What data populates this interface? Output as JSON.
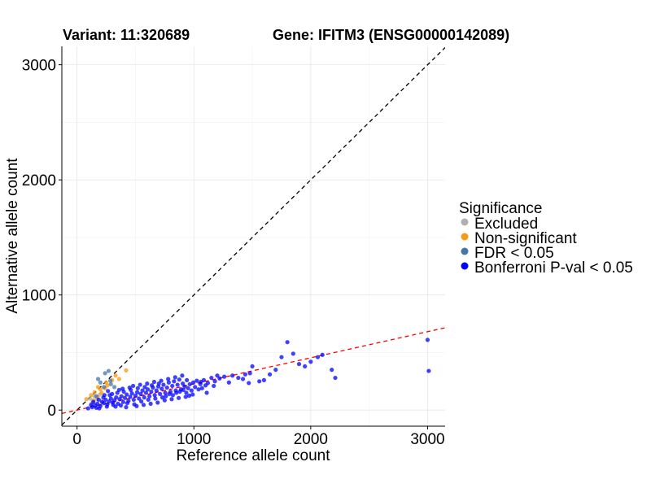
{
  "titles": {
    "left": "Variant: 11:320689",
    "right": "Gene: IFITM3 (ENSG00000142089)"
  },
  "legend": {
    "title": "Significance",
    "items": [
      {
        "label": "Excluded",
        "color": "#b0b0b0"
      },
      {
        "label": "Non-significant",
        "color": "#f59a12"
      },
      {
        "label": "FDR < 0.05",
        "color": "#4477aa"
      },
      {
        "label": "Bonferroni P-val < 0.05",
        "color": "#0000ff"
      }
    ]
  },
  "chart_data": {
    "type": "scatter",
    "xlabel": "Reference allele count",
    "ylabel": "Alternative allele count",
    "xlim": [
      -130,
      3150
    ],
    "ylim": [
      -140,
      3160
    ],
    "x_ticks": [
      0,
      1000,
      2000,
      3000
    ],
    "y_ticks": [
      0,
      1000,
      2000,
      3000
    ],
    "x_tick_labels": [
      "0",
      "1000",
      "2000",
      "3000"
    ],
    "y_tick_labels": [
      "0",
      "1000",
      "2000",
      "3000"
    ],
    "grid": true,
    "legend_position": "right",
    "reference_lines": [
      {
        "name": "identity",
        "slope": 1.0,
        "intercept": 0,
        "color": "#000000",
        "dash": "dashed"
      },
      {
        "name": "fit",
        "slope": 0.227,
        "intercept": 0,
        "color": "#ff0000",
        "dash": "dashed"
      }
    ],
    "series": [
      {
        "name": "Excluded",
        "color": "#b0b0b0",
        "points": [
          [
            110,
            100
          ],
          [
            135,
            85
          ],
          [
            150,
            120
          ],
          [
            170,
            95
          ],
          [
            195,
            135
          ],
          [
            125,
            60
          ],
          [
            210,
            80
          ]
        ]
      },
      {
        "name": "Non-significant",
        "color": "#f59a12",
        "points": [
          [
            80,
            95
          ],
          [
            120,
            130
          ],
          [
            150,
            155
          ],
          [
            180,
            200
          ],
          [
            200,
            180
          ],
          [
            240,
            190
          ],
          [
            300,
            260
          ],
          [
            330,
            300
          ],
          [
            360,
            270
          ],
          [
            420,
            345
          ],
          [
            250,
            240
          ],
          [
            260,
            215
          ],
          [
            140,
            80
          ],
          [
            175,
            115
          ],
          [
            210,
            150
          ]
        ]
      },
      {
        "name": "FDR < 0.05",
        "color": "#4477aa",
        "points": [
          [
            200,
            240
          ],
          [
            240,
            320
          ],
          [
            270,
            340
          ],
          [
            285,
            255
          ],
          [
            180,
            270
          ],
          [
            290,
            225
          ],
          [
            230,
            200
          ],
          [
            320,
            200
          ],
          [
            165,
            120
          ]
        ]
      },
      {
        "name": "Bonferroni P-val < 0.05",
        "color": "#0000ff",
        "points": [
          [
            95,
            15
          ],
          [
            130,
            25
          ],
          [
            155,
            40
          ],
          [
            175,
            55
          ],
          [
            200,
            35
          ],
          [
            215,
            70
          ],
          [
            230,
            60
          ],
          [
            245,
            90
          ],
          [
            260,
            50
          ],
          [
            275,
            75
          ],
          [
            290,
            100
          ],
          [
            305,
            65
          ],
          [
            320,
            85
          ],
          [
            335,
            110
          ],
          [
            350,
            55
          ],
          [
            365,
            95
          ],
          [
            380,
            120
          ],
          [
            395,
            70
          ],
          [
            410,
            105
          ],
          [
            425,
            135
          ],
          [
            440,
            80
          ],
          [
            455,
            115
          ],
          [
            470,
            145
          ],
          [
            485,
            90
          ],
          [
            500,
            125
          ],
          [
            515,
            155
          ],
          [
            530,
            100
          ],
          [
            545,
            140
          ],
          [
            560,
            170
          ],
          [
            575,
            110
          ],
          [
            590,
            150
          ],
          [
            605,
            180
          ],
          [
            620,
            120
          ],
          [
            635,
            160
          ],
          [
            650,
            195
          ],
          [
            665,
            130
          ],
          [
            680,
            170
          ],
          [
            695,
            205
          ],
          [
            710,
            140
          ],
          [
            725,
            185
          ],
          [
            740,
            220
          ],
          [
            755,
            150
          ],
          [
            770,
            195
          ],
          [
            785,
            240
          ],
          [
            800,
            160
          ],
          [
            815,
            210
          ],
          [
            830,
            250
          ],
          [
            845,
            170
          ],
          [
            860,
            220
          ],
          [
            875,
            265
          ],
          [
            890,
            180
          ],
          [
            905,
            230
          ],
          [
            920,
            205
          ],
          [
            935,
            150
          ],
          [
            950,
            190
          ],
          [
            965,
            225
          ],
          [
            980,
            170
          ],
          [
            995,
            240
          ],
          [
            1010,
            200
          ],
          [
            1025,
            255
          ],
          [
            1040,
            180
          ],
          [
            1055,
            225
          ],
          [
            1070,
            190
          ],
          [
            1085,
            260
          ],
          [
            1100,
            215
          ],
          [
            1120,
            235
          ],
          [
            1150,
            280
          ],
          [
            1180,
            250
          ],
          [
            1200,
            300
          ],
          [
            1260,
            290
          ],
          [
            1300,
            240
          ],
          [
            1380,
            280
          ],
          [
            1420,
            270
          ],
          [
            1470,
            235
          ],
          [
            1480,
            320
          ],
          [
            1500,
            380
          ],
          [
            1560,
            250
          ],
          [
            1600,
            260
          ],
          [
            1650,
            310
          ],
          [
            1700,
            350
          ],
          [
            1750,
            460
          ],
          [
            1800,
            590
          ],
          [
            1850,
            490
          ],
          [
            1900,
            400
          ],
          [
            1950,
            380
          ],
          [
            2000,
            420
          ],
          [
            2060,
            460
          ],
          [
            2100,
            480
          ],
          [
            2180,
            350
          ],
          [
            2210,
            280
          ],
          [
            3000,
            610
          ],
          [
            3010,
            340
          ],
          [
            140,
            70
          ],
          [
            165,
            20
          ],
          [
            185,
            90
          ],
          [
            225,
            110
          ],
          [
            255,
            30
          ],
          [
            280,
            130
          ],
          [
            310,
            45
          ],
          [
            345,
            150
          ],
          [
            375,
            40
          ],
          [
            400,
            160
          ],
          [
            430,
            60
          ],
          [
            460,
            175
          ],
          [
            490,
            50
          ],
          [
            520,
            190
          ],
          [
            550,
            75
          ],
          [
            580,
            200
          ],
          [
            610,
            90
          ],
          [
            640,
            215
          ],
          [
            670,
            100
          ],
          [
            700,
            230
          ],
          [
            730,
            110
          ],
          [
            760,
            120
          ],
          [
            790,
            140
          ],
          [
            820,
            130
          ],
          [
            850,
            150
          ],
          [
            880,
            160
          ],
          [
            910,
            175
          ],
          [
            940,
            260
          ],
          [
            120,
            45
          ],
          [
            190,
            15
          ],
          [
            235,
            130
          ],
          [
            265,
            165
          ],
          [
            300,
            140
          ],
          [
            330,
            30
          ],
          [
            360,
            175
          ],
          [
            390,
            185
          ],
          [
            420,
            25
          ],
          [
            450,
            195
          ],
          [
            480,
            210
          ],
          [
            510,
            35
          ],
          [
            540,
            220
          ],
          [
            570,
            45
          ],
          [
            600,
            230
          ],
          [
            630,
            55
          ],
          [
            660,
            245
          ],
          [
            690,
            65
          ],
          [
            720,
            255
          ],
          [
            750,
            85
          ],
          [
            780,
            270
          ],
          [
            810,
            95
          ],
          [
            840,
            285
          ],
          [
            870,
            105
          ],
          [
            900,
            300
          ],
          [
            930,
            115
          ],
          [
            960,
            125
          ],
          [
            990,
            135
          ],
          [
            1060,
            245
          ],
          [
            1110,
            150
          ],
          [
            1170,
            210
          ],
          [
            1220,
            275
          ],
          [
            1330,
            300
          ],
          [
            1440,
            310
          ]
        ]
      }
    ]
  }
}
